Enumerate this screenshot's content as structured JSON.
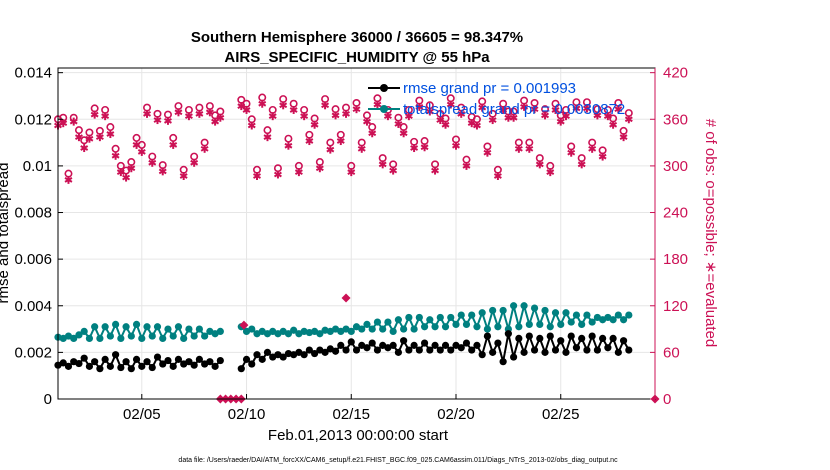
{
  "chart_data": {
    "type": "line",
    "title_line1": "Southern Hemisphere 36000 / 36605 = 98.347%",
    "title_line2": "AIRS_SPECIFIC_HUMIDITY @ 55 hPa",
    "xlabel": "Feb.01,2013 00:00:00 start",
    "ylabel_left": "rmse and totalspread",
    "ylabel_right": "# of obs: o=possible; ∗=evaluated",
    "footnote": "data file: /Users/raeder/DAI/ATM_forcXX/CAM6_setup/f.e21.FHIST_BGC.f09_025.CAM6assim.011/Diags_NTrS_2013-02/obs_diag_output.nc",
    "x_unit": "days since Feb.01,2013 00:00:00",
    "xlim": [
      1,
      29.5
    ],
    "x_ticks": [
      {
        "x": 5,
        "label": "02/05"
      },
      {
        "x": 10,
        "label": "02/10"
      },
      {
        "x": 15,
        "label": "02/15"
      },
      {
        "x": 20,
        "label": "02/20"
      },
      {
        "x": 25,
        "label": "02/25"
      }
    ],
    "ylim_left": [
      0,
      0.0142
    ],
    "y_ticks_left": [
      {
        "v": 0,
        "label": "0"
      },
      {
        "v": 0.002,
        "label": "0.002"
      },
      {
        "v": 0.004,
        "label": "0.004"
      },
      {
        "v": 0.006,
        "label": "0.006"
      },
      {
        "v": 0.008,
        "label": "0.008"
      },
      {
        "v": 0.01,
        "label": "0.01"
      },
      {
        "v": 0.012,
        "label": "0.012"
      },
      {
        "v": 0.014,
        "label": "0.014"
      }
    ],
    "ylim_right": [
      0,
      426
    ],
    "y_ticks_right": [
      {
        "v": 0,
        "label": "0"
      },
      {
        "v": 60,
        "label": "60"
      },
      {
        "v": 120,
        "label": "120"
      },
      {
        "v": 180,
        "label": "180"
      },
      {
        "v": 240,
        "label": "240"
      },
      {
        "v": 300,
        "label": "300"
      },
      {
        "v": 360,
        "label": "360"
      },
      {
        "v": 420,
        "label": "420"
      }
    ],
    "grid": true,
    "legend_position": "top-right",
    "legend": [
      {
        "label": "rmse grand pr = 0.001993",
        "color": "#000000"
      },
      {
        "label": "totalspread grand pr = 0.0030872",
        "color": "#008080"
      }
    ],
    "colors": {
      "rmse": "#000000",
      "spread": "#008080",
      "obs": "#cc1155",
      "legend_text": "#0050e0"
    },
    "gap": {
      "x_start": 8.75,
      "x_end": 9.75,
      "possible_in_gap": 0
    },
    "segments": [
      {
        "x_start": 1.0,
        "x_step": 0.25,
        "rmse": [
          0.00145,
          0.00155,
          0.0014,
          0.0016,
          0.00152,
          0.00175,
          0.0014,
          0.0016,
          0.0013,
          0.0017,
          0.0014,
          0.0019,
          0.00135,
          0.0016,
          0.0013,
          0.0017,
          0.0014,
          0.0016,
          0.00135,
          0.0018,
          0.0015,
          0.00165,
          0.0014,
          0.0017,
          0.0015,
          0.0016,
          0.00145,
          0.0017,
          0.0015,
          0.0016,
          0.0014,
          0.00165
        ],
        "spread": [
          0.00265,
          0.0026,
          0.0027,
          0.0026,
          0.00275,
          0.0029,
          0.0026,
          0.0031,
          0.0026,
          0.0031,
          0.0027,
          0.0032,
          0.0026,
          0.0031,
          0.0027,
          0.0032,
          0.0026,
          0.0031,
          0.0027,
          0.0031,
          0.0026,
          0.003,
          0.0027,
          0.0031,
          0.0026,
          0.003,
          0.0027,
          0.003,
          0.0027,
          0.0029,
          0.0028,
          0.0029
        ],
        "possible": [
          360,
          362,
          290,
          362,
          346,
          333,
          343,
          374,
          345,
          372,
          350,
          322,
          300,
          294,
          305,
          336,
          327,
          375,
          312,
          367,
          301,
          366,
          336,
          377,
          295,
          372,
          312,
          375,
          330,
          377,
          365,
          370
        ],
        "evaluated": [
          352,
          355,
          282,
          357,
          337,
          323,
          335,
          366,
          337,
          364,
          341,
          313,
          292,
          285,
          297,
          327,
          318,
          367,
          304,
          359,
          293,
          358,
          327,
          369,
          287,
          364,
          304,
          367,
          322,
          369,
          357,
          362
        ]
      },
      {
        "x_start": 9.75,
        "x_step": 0.25,
        "rmse": [
          0.0013,
          0.0017,
          0.0015,
          0.0019,
          0.0017,
          0.002,
          0.0018,
          0.0019,
          0.0018,
          0.00195,
          0.0019,
          0.002,
          0.0019,
          0.0021,
          0.00195,
          0.0021,
          0.002,
          0.00215,
          0.00205,
          0.0023,
          0.0021,
          0.00245,
          0.0021,
          0.0023,
          0.0022,
          0.0024,
          0.0021,
          0.0023,
          0.0022,
          0.0023,
          0.002,
          0.0025,
          0.0021,
          0.0023,
          0.0021,
          0.0024,
          0.0021,
          0.0023,
          0.0021,
          0.0023,
          0.0021,
          0.0023,
          0.0022,
          0.0024,
          0.0021,
          0.0023,
          0.0019,
          0.0027,
          0.002,
          0.0024,
          0.0016,
          0.0028,
          0.0018,
          0.0026,
          0.002,
          0.0027,
          0.0021,
          0.0026,
          0.002,
          0.0027,
          0.0021,
          0.0025,
          0.002,
          0.0027,
          0.0022,
          0.0026,
          0.0021,
          0.0027,
          0.0021,
          0.0026,
          0.0022,
          0.0026,
          0.002,
          0.0025,
          0.0021
        ],
        "spread": [
          0.0031,
          0.0029,
          0.003,
          0.0028,
          0.0029,
          0.0028,
          0.0029,
          0.0028,
          0.0029,
          0.0028,
          0.00295,
          0.0028,
          0.0029,
          0.00285,
          0.0029,
          0.0028,
          0.00295,
          0.0029,
          0.003,
          0.0029,
          0.003,
          0.0029,
          0.0031,
          0.003,
          0.0032,
          0.003,
          0.0033,
          0.003,
          0.0033,
          0.0029,
          0.0034,
          0.003,
          0.0035,
          0.003,
          0.0035,
          0.0031,
          0.0034,
          0.0031,
          0.0035,
          0.0031,
          0.0035,
          0.0032,
          0.0036,
          0.0032,
          0.0036,
          0.0031,
          0.0037,
          0.003,
          0.0038,
          0.0031,
          0.0038,
          0.003,
          0.004,
          0.0031,
          0.004,
          0.0032,
          0.0039,
          0.0032,
          0.0038,
          0.0031,
          0.0037,
          0.0032,
          0.0037,
          0.0033,
          0.0036,
          0.0032,
          0.0036,
          0.0033,
          0.0035,
          0.0034,
          0.0035,
          0.0034,
          0.0036,
          0.0034,
          0.0036
        ],
        "possible": [
          385,
          380,
          360,
          295,
          388,
          346,
          372,
          297,
          386,
          335,
          380,
          300,
          372,
          340,
          361,
          305,
          386,
          330,
          373,
          340,
          375,
          300,
          381,
          330,
          365,
          350,
          387,
          310,
          372,
          302,
          362,
          350,
          372,
          331,
          384,
          332,
          378,
          302,
          367,
          361,
          387,
          334,
          375,
          308,
          363,
          360,
          383,
          325,
          367,
          295,
          380,
          370,
          370,
          330,
          384,
          330,
          381,
          310,
          373,
          300,
          380,
          365,
          372,
          325,
          382,
          310,
          382,
          330,
          373,
          320,
          372,
          361,
          381,
          345,
          368
        ],
        "evaluated": [
          377,
          372,
          352,
          287,
          380,
          337,
          364,
          289,
          378,
          326,
          372,
          292,
          364,
          332,
          353,
          297,
          378,
          321,
          365,
          332,
          367,
          292,
          373,
          322,
          357,
          342,
          379,
          302,
          364,
          294,
          354,
          342,
          364,
          323,
          376,
          324,
          370,
          294,
          359,
          353,
          379,
          326,
          367,
          300,
          355,
          352,
          375,
          317,
          359,
          287,
          372,
          362,
          362,
          322,
          376,
          322,
          373,
          302,
          365,
          292,
          372,
          357,
          364,
          317,
          374,
          302,
          374,
          322,
          365,
          312,
          364,
          353,
          373,
          337,
          360
        ]
      }
    ],
    "outliers_evaluated": [
      {
        "x": 9.875,
        "y": 95
      },
      {
        "x": 14.75,
        "y": 130
      }
    ]
  }
}
